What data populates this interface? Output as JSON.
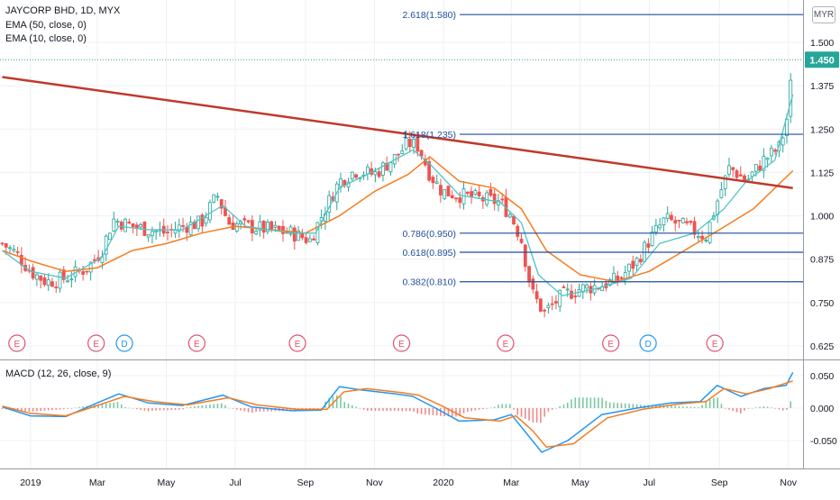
{
  "header": {
    "symbol_line": "JAYCORP BHD, 1D, MYX",
    "ema50_label": "EMA (50, close, 0)",
    "ema10_label": "EMA (10, close, 0)",
    "currency": "MYR",
    "macd_label": "MACD (12, 26, close, 9)"
  },
  "colors": {
    "candle_up": "#26a69a",
    "candle_down": "#ef5350",
    "ema50": "#f57c1f",
    "ema10": "#4fc3c7",
    "trendline": "#c0392b",
    "fib": "#1f4e9c",
    "macd": "#2196f3",
    "signal": "#f57c1f",
    "current_price": "#26a69a"
  },
  "chart_data": [
    {
      "type": "candlestick",
      "title": "JAYCORP BHD, 1D, MYX",
      "x_ticks": [
        "2019",
        "Mar",
        "May",
        "Jul",
        "Sep",
        "Nov",
        "2020",
        "Mar",
        "May",
        "Jul",
        "Sep",
        "Nov"
      ],
      "y_ticks": [
        "1.500",
        "1.375",
        "1.250",
        "1.125",
        "1.000",
        "0.875",
        "0.750",
        "0.625"
      ],
      "ylim": [
        0.6,
        1.6
      ],
      "current_price": "1.450",
      "price_series": {
        "x": [
          "2018-12-07",
          "2018-12-20",
          "2019-01-01",
          "2019-01-15",
          "2019-02-01",
          "2019-02-20",
          "2019-03-05",
          "2019-03-15",
          "2019-04-01",
          "2019-04-15",
          "2019-05-01",
          "2019-05-15",
          "2019-06-01",
          "2019-06-15",
          "2019-06-25",
          "2019-07-10",
          "2019-08-01",
          "2019-08-20",
          "2019-09-05",
          "2019-09-20",
          "2019-10-01",
          "2019-10-15",
          "2019-11-01",
          "2019-11-20",
          "2019-12-01",
          "2019-12-10",
          "2019-12-20",
          "2019-12-31",
          "2020-01-15",
          "2020-02-01",
          "2020-02-20",
          "2020-03-01",
          "2020-03-10",
          "2020-03-19",
          "2020-03-30",
          "2020-04-15",
          "2020-05-01",
          "2020-05-20",
          "2020-06-05",
          "2020-06-20",
          "2020-07-01",
          "2020-07-15",
          "2020-08-01",
          "2020-08-20",
          "2020-09-01",
          "2020-09-10",
          "2020-09-25",
          "2020-10-10",
          "2020-10-25",
          "2020-11-01",
          "2020-11-05"
        ],
        "close": [
          0.92,
          0.89,
          0.84,
          0.81,
          0.82,
          0.85,
          0.9,
          0.99,
          0.97,
          0.96,
          0.95,
          0.97,
          0.98,
          1.06,
          0.98,
          0.97,
          0.96,
          0.95,
          0.93,
          1.03,
          1.1,
          1.13,
          1.12,
          1.17,
          1.21,
          1.2,
          1.12,
          1.07,
          1.06,
          1.05,
          1.04,
          1.0,
          0.93,
          0.78,
          0.72,
          0.77,
          0.79,
          0.8,
          0.82,
          0.87,
          0.93,
          0.99,
          0.97,
          0.94,
          1.06,
          1.14,
          1.1,
          1.16,
          1.2,
          1.3,
          1.45
        ]
      },
      "ema50": {
        "x": [
          "2018-12-07",
          "2019-01-01",
          "2019-02-01",
          "2019-03-01",
          "2019-04-01",
          "2019-05-01",
          "2019-06-01",
          "2019-07-01",
          "2019-08-01",
          "2019-09-01",
          "2019-10-01",
          "2019-11-01",
          "2019-12-01",
          "2019-12-20",
          "2020-01-15",
          "2020-02-15",
          "2020-03-10",
          "2020-04-01",
          "2020-05-01",
          "2020-06-01",
          "2020-07-01",
          "2020-08-01",
          "2020-09-01",
          "2020-10-01",
          "2020-11-05"
        ],
        "values": [
          0.9,
          0.87,
          0.84,
          0.85,
          0.9,
          0.92,
          0.95,
          0.97,
          0.96,
          0.95,
          1.0,
          1.07,
          1.12,
          1.17,
          1.1,
          1.08,
          1.02,
          0.9,
          0.83,
          0.81,
          0.84,
          0.9,
          0.96,
          1.02,
          1.13
        ]
      },
      "ema10": {
        "x": [
          "2018-12-07",
          "2019-01-01",
          "2019-02-01",
          "2019-03-05",
          "2019-03-20",
          "2019-04-15",
          "2019-05-15",
          "2019-06-20",
          "2019-07-10",
          "2019-08-20",
          "2019-09-10",
          "2019-10-01",
          "2019-11-01",
          "2019-12-05",
          "2019-12-20",
          "2020-01-15",
          "2020-02-20",
          "2020-03-10",
          "2020-03-25",
          "2020-04-15",
          "2020-05-15",
          "2020-06-15",
          "2020-07-10",
          "2020-08-10",
          "2020-09-05",
          "2020-09-25",
          "2020-10-20",
          "2020-11-05"
        ],
        "values": [
          0.9,
          0.84,
          0.82,
          0.88,
          0.97,
          0.96,
          0.96,
          1.03,
          0.97,
          0.95,
          0.95,
          1.08,
          1.13,
          1.19,
          1.15,
          1.06,
          1.04,
          0.98,
          0.83,
          0.77,
          0.79,
          0.82,
          0.92,
          0.95,
          1.02,
          1.1,
          1.16,
          1.35
        ]
      },
      "trendline": {
        "x": [
          "2018-12-07",
          "2020-11-05"
        ],
        "values": [
          1.4,
          1.08
        ]
      },
      "fibonacci": [
        {
          "label": "2.618(1.580)",
          "value": 1.58
        },
        {
          "label": "1.618(1.235)",
          "value": 1.235
        },
        {
          "label": "0.786(0.950)",
          "value": 0.95
        },
        {
          "label": "0.618(0.895)",
          "value": 0.895
        },
        {
          "label": "0.382(0.810)",
          "value": 0.81
        }
      ],
      "events": [
        {
          "letter": "E",
          "date": "2018-12-20"
        },
        {
          "letter": "E",
          "date": "2019-02-28"
        },
        {
          "letter": "D",
          "date": "2019-03-25"
        },
        {
          "letter": "E",
          "date": "2019-05-28"
        },
        {
          "letter": "E",
          "date": "2019-08-25"
        },
        {
          "letter": "E",
          "date": "2019-11-25"
        },
        {
          "letter": "E",
          "date": "2020-02-25"
        },
        {
          "letter": "E",
          "date": "2020-05-28"
        },
        {
          "letter": "D",
          "date": "2020-06-30"
        },
        {
          "letter": "E",
          "date": "2020-08-28"
        }
      ]
    },
    {
      "type": "line",
      "title": "MACD (12, 26, close, 9)",
      "y_ticks": [
        "0.050",
        "0.000",
        "-0.050"
      ],
      "ylim": [
        -0.08,
        0.07
      ],
      "series": [
        {
          "key": "macd",
          "x": [
            "2018-12-07",
            "2019-01-01",
            "2019-02-01",
            "2019-03-01",
            "2019-03-20",
            "2019-04-15",
            "2019-05-15",
            "2019-06-20",
            "2019-07-15",
            "2019-08-20",
            "2019-09-15",
            "2019-10-01",
            "2019-10-20",
            "2019-11-20",
            "2019-12-05",
            "2019-12-25",
            "2020-01-15",
            "2020-02-15",
            "2020-03-01",
            "2020-03-15",
            "2020-03-28",
            "2020-04-20",
            "2020-05-20",
            "2020-06-20",
            "2020-07-20",
            "2020-08-15",
            "2020-08-30",
            "2020-09-20",
            "2020-10-10",
            "2020-10-30",
            "2020-11-05"
          ],
          "values": [
            0.002,
            -0.012,
            -0.013,
            0.008,
            0.022,
            0.008,
            0.004,
            0.02,
            0.002,
            -0.004,
            -0.003,
            0.033,
            0.028,
            0.022,
            0.018,
            0.0,
            -0.02,
            -0.018,
            -0.01,
            -0.04,
            -0.068,
            -0.05,
            -0.01,
            0.0,
            0.008,
            0.01,
            0.035,
            0.018,
            0.03,
            0.035,
            0.055
          ]
        },
        {
          "key": "signal",
          "x": [
            "2018-12-07",
            "2019-01-01",
            "2019-02-01",
            "2019-03-01",
            "2019-03-25",
            "2019-04-20",
            "2019-05-20",
            "2019-06-25",
            "2019-07-20",
            "2019-08-25",
            "2019-09-20",
            "2019-10-05",
            "2019-10-25",
            "2019-11-25",
            "2019-12-10",
            "2019-12-30",
            "2020-01-20",
            "2020-02-20",
            "2020-03-05",
            "2020-03-20",
            "2020-04-01",
            "2020-04-25",
            "2020-05-25",
            "2020-06-25",
            "2020-07-25",
            "2020-08-20",
            "2020-09-05",
            "2020-09-25",
            "2020-10-15",
            "2020-11-05"
          ],
          "values": [
            0.003,
            -0.008,
            -0.012,
            0.004,
            0.018,
            0.01,
            0.005,
            0.016,
            0.005,
            -0.002,
            -0.002,
            0.025,
            0.03,
            0.024,
            0.02,
            0.004,
            -0.015,
            -0.02,
            -0.012,
            -0.035,
            -0.06,
            -0.055,
            -0.015,
            -0.002,
            0.006,
            0.01,
            0.03,
            0.022,
            0.03,
            0.042
          ]
        }
      ]
    }
  ]
}
